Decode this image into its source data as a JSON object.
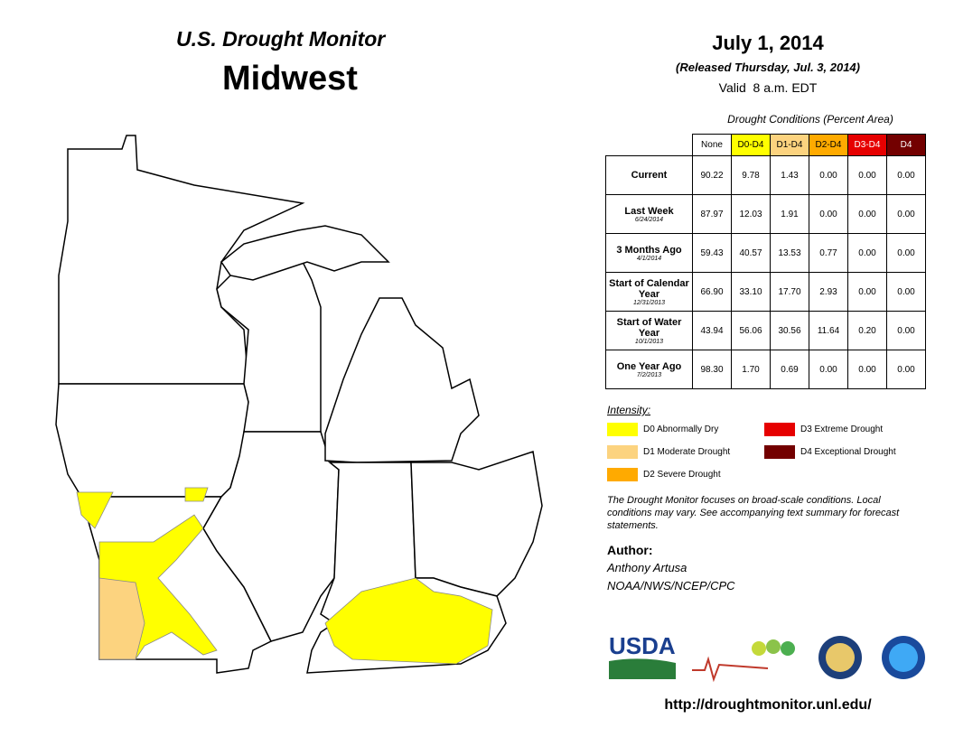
{
  "header": {
    "title": "U.S. Drought Monitor",
    "region": "Midwest",
    "date": "July 1, 2014",
    "released": "(Released Thursday, Jul. 3, 2014)",
    "valid": "Valid  8 a.m. EDT"
  },
  "table": {
    "caption": "Drought Conditions (Percent Area)",
    "columns": [
      "None",
      "D0-D4",
      "D1-D4",
      "D2-D4",
      "D3-D4",
      "D4"
    ],
    "rows": [
      {
        "label": "Current",
        "values": [
          "90.22",
          "9.78",
          "1.43",
          "0.00",
          "0.00",
          "0.00"
        ]
      },
      {
        "label": "Last Week",
        "date": "6/24/2014",
        "values": [
          "87.97",
          "12.03",
          "1.91",
          "0.00",
          "0.00",
          "0.00"
        ]
      },
      {
        "label": "3 Months Ago",
        "date": "4/1/2014",
        "values": [
          "59.43",
          "40.57",
          "13.53",
          "0.77",
          "0.00",
          "0.00"
        ]
      },
      {
        "label": "Start of Calendar Year",
        "date": "12/31/2013",
        "values": [
          "66.90",
          "33.10",
          "17.70",
          "2.93",
          "0.00",
          "0.00"
        ]
      },
      {
        "label": "Start of Water Year",
        "date": "10/1/2013",
        "values": [
          "43.94",
          "56.06",
          "30.56",
          "11.64",
          "0.20",
          "0.00"
        ]
      },
      {
        "label": "One Year Ago",
        "date": "7/2/2013",
        "values": [
          "98.30",
          "1.70",
          "0.69",
          "0.00",
          "0.00",
          "0.00"
        ]
      }
    ]
  },
  "legend": {
    "title": "Intensity:",
    "items": [
      "D0 Abnormally Dry",
      "D1 Moderate Drought",
      "D2 Severe Drought",
      "D3 Extreme Drought",
      "D4 Exceptional Drought"
    ]
  },
  "note": "The Drought Monitor focuses on broad-scale conditions. Local conditions may vary. See accompanying text summary for forecast statements.",
  "author": {
    "label": "Author:",
    "name": "Anthony Artusa",
    "org": "NOAA/NWS/NCEP/CPC"
  },
  "logos": {
    "usda": "USDA"
  },
  "url": "http://droughtmonitor.unl.edu/"
}
